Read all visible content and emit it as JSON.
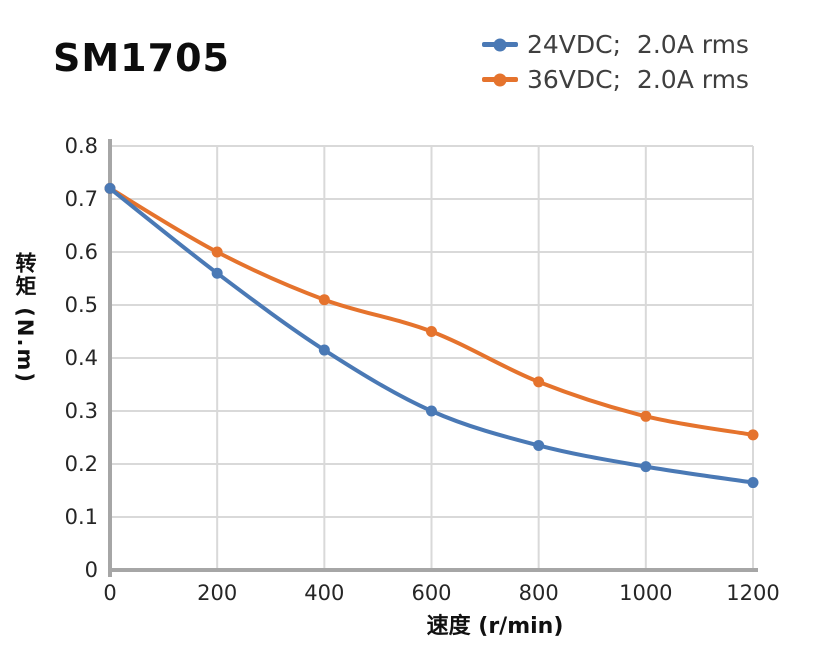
{
  "page": {
    "title": "SM1705"
  },
  "legend": {
    "items": [
      {
        "label": "24VDC;  2.0A rms",
        "color": "#4A79B5"
      },
      {
        "label": "36VDC;  2.0A rms",
        "color": "#E5732D"
      }
    ]
  },
  "chart_data": {
    "type": "line",
    "title": "SM1705",
    "xlabel": "速度 (r/min)",
    "ylabel": "转矩 (N.m)",
    "x": [
      0,
      200,
      400,
      600,
      800,
      1000,
      1200
    ],
    "series": [
      {
        "name": "24VDC;  2.0A rms",
        "color": "#4A79B5",
        "values": [
          0.72,
          0.56,
          0.415,
          0.3,
          0.235,
          0.195,
          0.165
        ]
      },
      {
        "name": "36VDC;  2.0A rms",
        "color": "#E5732D",
        "values": [
          0.72,
          0.6,
          0.51,
          0.45,
          0.355,
          0.29,
          0.255
        ]
      }
    ],
    "xlim": [
      0,
      1200
    ],
    "ylim": [
      0,
      0.8
    ],
    "x_ticks": [
      0,
      200,
      400,
      600,
      800,
      1000,
      1200
    ],
    "y_ticks": [
      0,
      0.1,
      0.2,
      0.3,
      0.4,
      0.5,
      0.6,
      0.7,
      0.8
    ],
    "grid": true,
    "legend_position": "top-right",
    "marker": "circle",
    "smooth": true
  },
  "colors": {
    "grid": "#D9D9D9",
    "axis": "#A6A6A6",
    "tick_text": "#262626",
    "background": "#FFFFFF"
  }
}
